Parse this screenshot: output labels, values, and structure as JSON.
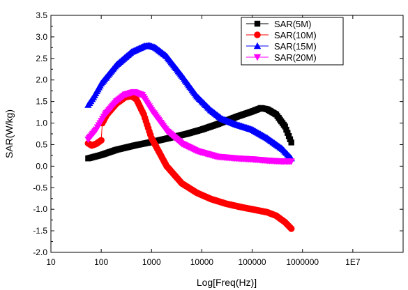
{
  "chart_data": {
    "type": "scatter",
    "title": "",
    "xlabel": "Log[Freq(Hz)]",
    "ylabel": "SAR(W/kg)",
    "xscale": "log",
    "xlim": [
      10,
      100000000
    ],
    "ylim": [
      -2.0,
      3.5
    ],
    "xticks": [
      10,
      100,
      1000,
      10000,
      100000,
      1000000,
      10000000
    ],
    "xtick_labels": [
      "10",
      "100",
      "1000",
      "10000",
      "100000",
      "1000000",
      "1E7"
    ],
    "yticks": [
      -2.0,
      -1.5,
      -1.0,
      -0.5,
      0.0,
      0.5,
      1.0,
      1.5,
      2.0,
      2.5,
      3.0,
      3.5
    ],
    "ytick_labels": [
      "-2.0",
      "-1.5",
      "-1.0",
      "-0.5",
      "0.0",
      "0.5",
      "1.0",
      "1.5",
      "2.0",
      "2.5",
      "3.0",
      "3.5"
    ],
    "grid": false,
    "legend_position": "top-right",
    "series": [
      {
        "name": "SAR(5M)",
        "color": "#000000",
        "marker": "square",
        "points": [
          [
            55,
            0.18
          ],
          [
            100,
            0.26
          ],
          [
            200,
            0.38
          ],
          [
            500,
            0.49
          ],
          [
            1000,
            0.56
          ],
          [
            2000,
            0.64
          ],
          [
            5000,
            0.75
          ],
          [
            10000,
            0.85
          ],
          [
            20000,
            0.97
          ],
          [
            50000,
            1.15
          ],
          [
            100000,
            1.27
          ],
          [
            150000,
            1.35
          ],
          [
            200000,
            1.32
          ],
          [
            300000,
            1.2
          ],
          [
            450000,
            0.92
          ],
          [
            600000,
            0.55
          ]
        ]
      },
      {
        "name": "SAR(10M)",
        "color": "#ff0000",
        "marker": "circle",
        "points": [
          [
            55,
            0.53
          ],
          [
            65,
            0.48
          ],
          [
            80,
            0.52
          ],
          [
            100,
            0.6
          ],
          [
            105,
            1.0
          ],
          [
            130,
            1.2
          ],
          [
            200,
            1.45
          ],
          [
            300,
            1.6
          ],
          [
            400,
            1.63
          ],
          [
            500,
            1.55
          ],
          [
            700,
            1.2
          ],
          [
            1000,
            0.65
          ],
          [
            2000,
            0.0
          ],
          [
            4000,
            -0.4
          ],
          [
            8000,
            -0.62
          ],
          [
            15000,
            -0.76
          ],
          [
            30000,
            -0.87
          ],
          [
            60000,
            -0.95
          ],
          [
            100000,
            -1.0
          ],
          [
            200000,
            -1.07
          ],
          [
            300000,
            -1.15
          ],
          [
            450000,
            -1.3
          ],
          [
            600000,
            -1.45
          ]
        ]
      },
      {
        "name": "SAR(15M)",
        "color": "#0000ff",
        "marker": "triangle-up",
        "points": [
          [
            55,
            1.42
          ],
          [
            70,
            1.6
          ],
          [
            100,
            1.92
          ],
          [
            200,
            2.35
          ],
          [
            400,
            2.65
          ],
          [
            700,
            2.78
          ],
          [
            900,
            2.8
          ],
          [
            1200,
            2.75
          ],
          [
            2000,
            2.55
          ],
          [
            4000,
            2.1
          ],
          [
            8000,
            1.62
          ],
          [
            15000,
            1.3
          ],
          [
            25000,
            1.1
          ],
          [
            50000,
            0.96
          ],
          [
            100000,
            0.85
          ],
          [
            200000,
            0.65
          ],
          [
            400000,
            0.4
          ],
          [
            600000,
            0.18
          ]
        ]
      },
      {
        "name": "SAR(20M)",
        "color": "#ff00ff",
        "marker": "triangle-down",
        "points": [
          [
            55,
            0.62
          ],
          [
            80,
            0.85
          ],
          [
            120,
            1.2
          ],
          [
            200,
            1.5
          ],
          [
            300,
            1.66
          ],
          [
            450,
            1.72
          ],
          [
            650,
            1.65
          ],
          [
            1000,
            1.3
          ],
          [
            2000,
            0.82
          ],
          [
            4000,
            0.52
          ],
          [
            8000,
            0.35
          ],
          [
            20000,
            0.22
          ],
          [
            50000,
            0.18
          ],
          [
            100000,
            0.16
          ],
          [
            200000,
            0.13
          ],
          [
            400000,
            0.11
          ],
          [
            600000,
            0.11
          ]
        ]
      }
    ]
  }
}
